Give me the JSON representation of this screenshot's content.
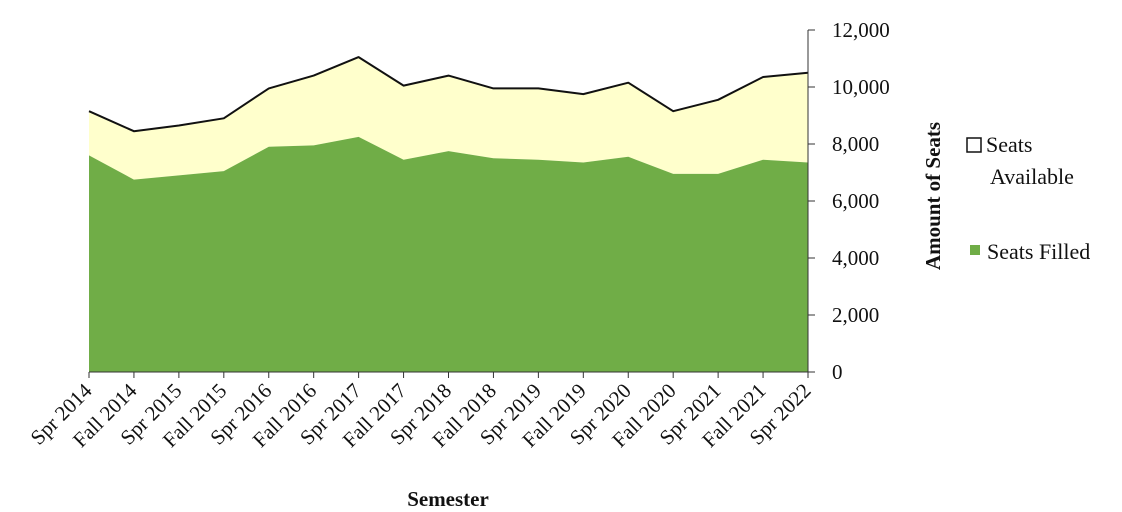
{
  "chart_data": {
    "type": "area",
    "title": "",
    "xlabel": "Semester",
    "ylabel": "Amount of Seats",
    "stacked": true,
    "ylim": [
      0,
      12000
    ],
    "yticks": [
      0,
      2000,
      4000,
      6000,
      8000,
      10000,
      12000
    ],
    "ytick_labels": [
      "0",
      "2,000",
      "4,000",
      "6,000",
      "8,000",
      "10,000",
      "12,000"
    ],
    "y_axis_position": "right",
    "grid": false,
    "legend_position": "right",
    "categories": [
      "Spr 2014",
      "Fall 2014",
      "Spr 2015",
      "Fall 2015",
      "Spr 2016",
      "Fall 2016",
      "Spr 2017",
      "Fall 2017",
      "Spr 2018",
      "Fall 2018",
      "Spr 2019",
      "Fall 2019",
      "Spr 2020",
      "Fall 2020",
      "Spr 2021",
      "Fall 2021",
      "Spr 2022"
    ],
    "series": [
      {
        "name": "Seats Filled",
        "color": "#70ad47",
        "values": [
          7600,
          6750,
          6900,
          7050,
          7900,
          7950,
          8250,
          7450,
          7750,
          7500,
          7450,
          7350,
          7550,
          6950,
          6950,
          7450,
          7350
        ]
      },
      {
        "name": "Seats Available",
        "color": "#ffffcc",
        "values": [
          1550,
          1700,
          1750,
          1850,
          2050,
          2450,
          2800,
          2600,
          2650,
          2450,
          2500,
          2400,
          2600,
          2200,
          2600,
          2900,
          3150
        ]
      }
    ],
    "legend": [
      {
        "lines": [
          "Seats",
          "Available"
        ],
        "marker": "hollow-square"
      },
      {
        "lines": [
          "Seats Filled"
        ],
        "marker": "filled-square"
      }
    ]
  }
}
